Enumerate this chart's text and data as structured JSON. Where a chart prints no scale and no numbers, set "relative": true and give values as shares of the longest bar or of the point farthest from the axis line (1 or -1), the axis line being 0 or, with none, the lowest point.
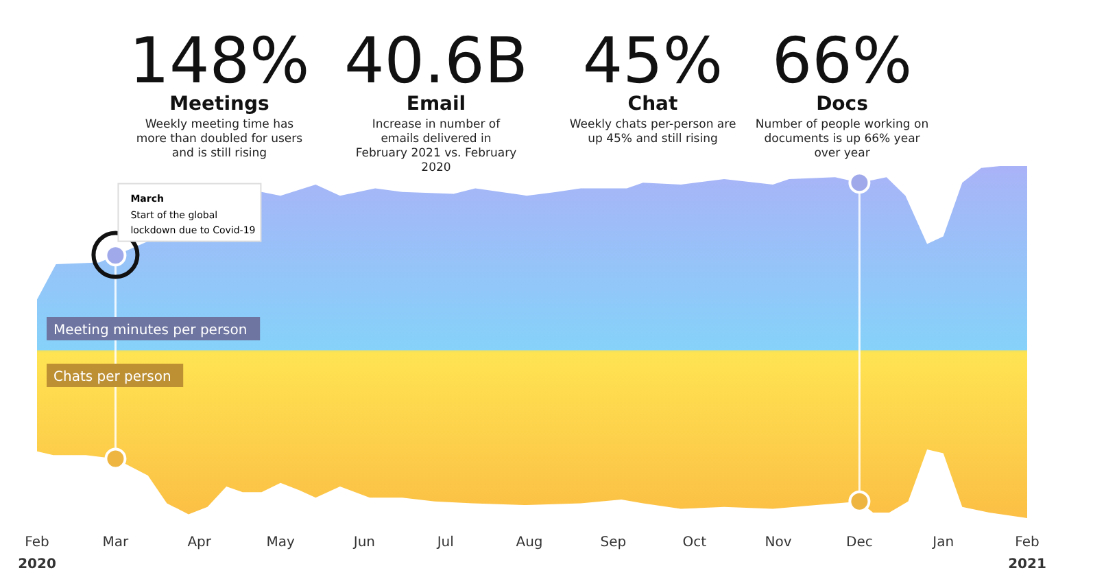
{
  "chart_data": {
    "type": "area",
    "relative": true,
    "annotations": [
      "148%",
      "Meetings",
      "Weekly meeting time has more than doubled for users and is still rising",
      "40.6B",
      "Email",
      "Increase in number of emails delivered in February 2021 vs. February 2020",
      "45%",
      "Chat",
      "Weekly chats per-person are up 45% and still rising",
      "66%",
      "Docs",
      "Number of people working on documents is up 66% year over year",
      {
        "text": "March\nStart of the global lockdown due to Covid-19",
        "x": "2020-03-01",
        "y": 0.52
      }
    ],
    "xlim": [
      "2020-02-01",
      "2021-02-01"
    ],
    "xticks": [
      {
        "value": "2020-02-01",
        "label": "Feb\n2020"
      },
      {
        "value": "2020-03-01",
        "label": "Mar"
      },
      {
        "value": "2020-04-01",
        "label": "Apr"
      },
      {
        "value": "2020-05-01",
        "label": "May"
      },
      {
        "value": "2020-06-01",
        "label": "Jun"
      },
      {
        "value": "2020-07-01",
        "label": "Jul"
      },
      {
        "value": "2020-08-01",
        "label": "Aug"
      },
      {
        "value": "2020-09-01",
        "label": "Sep"
      },
      {
        "value": "2020-10-01",
        "label": "Oct"
      },
      {
        "value": "2020-11-01",
        "label": "Nov"
      },
      {
        "value": "2020-12-01",
        "label": "Dec"
      },
      {
        "value": "2021-01-01",
        "label": "Jan"
      },
      {
        "value": "2021-02-01",
        "label": "Feb\n2021"
      }
    ],
    "ref_lines": [
      {
        "axis": "y",
        "value": 0,
        "color": "#f3e25a"
      },
      {
        "axis": "x",
        "value": "2020-03-01",
        "color": "#ffffff"
      },
      {
        "axis": "x",
        "value": "2020-12-01",
        "color": "#ffffff"
      }
    ],
    "series": [
      {
        "name": "Meeting minutes per person",
        "color": "#a9b3f7",
        "x": [
          "2020-02-01",
          "2020-02-08",
          "2020-02-24",
          "2020-04-24",
          "2020-05-01",
          "2020-05-14",
          "2020-05-23",
          "2020-06-05",
          "2020-06-15",
          "2020-07-04",
          "2020-07-12",
          "2020-07-31",
          "2020-08-11",
          "2020-08-20",
          "2020-09-06",
          "2020-09-12",
          "2020-09-26",
          "2020-10-12",
          "2020-10-30",
          "2020-11-05",
          "2020-11-22",
          "2020-12-01",
          "2020-12-11",
          "2020-12-18",
          "2020-12-26",
          "2021-01-01",
          "2021-01-08",
          "2021-01-15",
          "2021-01-22",
          "2021-02-01"
        ],
        "values": [
          0.28,
          0.47,
          0.48,
          0.86,
          0.84,
          0.9,
          0.84,
          0.88,
          0.86,
          0.85,
          0.88,
          0.84,
          0.86,
          0.88,
          0.88,
          0.91,
          0.9,
          0.93,
          0.9,
          0.93,
          0.94,
          0.91,
          0.94,
          0.84,
          0.58,
          0.62,
          0.91,
          0.99,
          1,
          1
        ]
      },
      {
        "name": "Chats per person",
        "color": "#fbbf45",
        "x": [
          "2020-02-01",
          "2020-02-07",
          "2020-02-19",
          "2020-03-01",
          "2020-03-13",
          "2020-03-20",
          "2020-03-28",
          "2020-04-04",
          "2020-04-11",
          "2020-04-17",
          "2020-04-24",
          "2020-05-01",
          "2020-05-08",
          "2020-05-14",
          "2020-05-23",
          "2020-06-03",
          "2020-06-15",
          "2020-06-27",
          "2020-07-11",
          "2020-07-31",
          "2020-08-20",
          "2020-09-04",
          "2020-09-12",
          "2020-09-26",
          "2020-10-12",
          "2020-10-30",
          "2020-11-15",
          "2020-12-01",
          "2020-12-06",
          "2020-12-12",
          "2020-12-19",
          "2020-12-26",
          "2021-01-01",
          "2021-01-08",
          "2021-01-18",
          "2021-02-01"
        ],
        "values": [
          -0.54,
          -0.56,
          -0.56,
          -0.58,
          -0.67,
          -0.82,
          -0.88,
          -0.84,
          -0.73,
          -0.76,
          -0.76,
          -0.71,
          -0.75,
          -0.79,
          -0.73,
          -0.79,
          -0.79,
          -0.81,
          -0.82,
          -0.83,
          -0.82,
          -0.8,
          -0.82,
          -0.85,
          -0.84,
          -0.85,
          -0.83,
          -0.81,
          -0.87,
          -0.87,
          -0.81,
          -0.53,
          -0.55,
          -0.84,
          -0.87,
          -0.9
        ]
      }
    ]
  }
}
